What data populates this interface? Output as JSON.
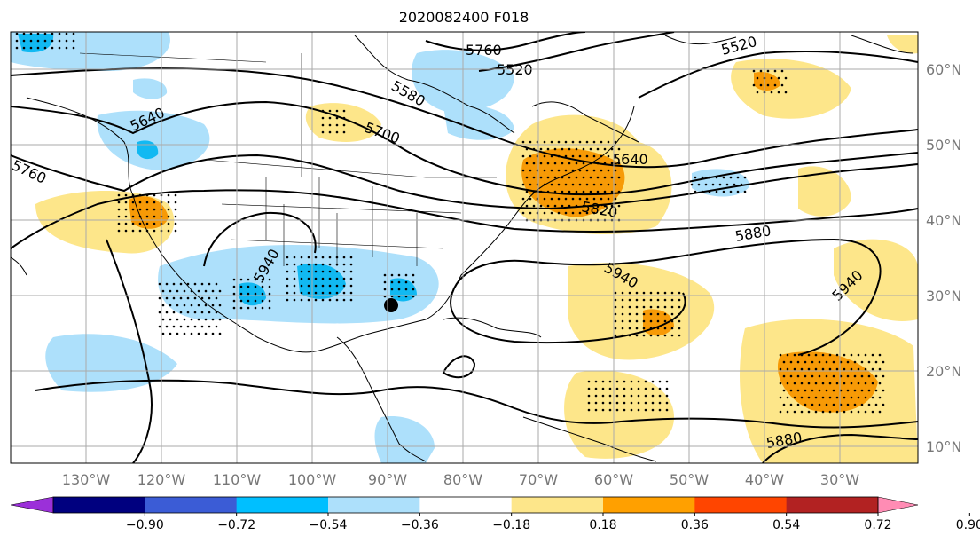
{
  "title": "2020082400 F018",
  "colors": {
    "ocean": "#ffffff",
    "light_yellow": "#fde68a",
    "orange": "#f79a06",
    "light_blue": "#ade0fb",
    "blue": "#11b9f2",
    "grid": "#aaaaaa",
    "contour": "#000000"
  },
  "longitude_labels": [
    "130°W",
    "120°W",
    "110°W",
    "100°W",
    "90°W",
    "80°W",
    "70°W",
    "60°W",
    "50°W",
    "40°W",
    "30°W"
  ],
  "latitude_labels": [
    "60°N",
    "50°N",
    "40°N",
    "30°N",
    "20°N",
    "10°N"
  ],
  "height_contour_labels": [
    "5760",
    "5520",
    "5520",
    "5580",
    "5640",
    "5700",
    "5760",
    "5640",
    "5640",
    "5820",
    "5880",
    "5940",
    "5940",
    "5940",
    "5880"
  ],
  "colorbar": {
    "ticks": [
      "−0.90",
      "−0.72",
      "−0.54",
      "−0.36",
      "−0.18",
      "0.18",
      "0.36",
      "0.54",
      "0.72",
      "0.90"
    ],
    "colors": [
      "#9b30d9",
      "#00007f",
      "#3b5cd6",
      "#00bfff",
      "#ade0fb",
      "#ffffff",
      "#fde68a",
      "#ffa000",
      "#ff4500",
      "#b22222",
      "#ff8cb4"
    ]
  },
  "marker": {
    "label": "",
    "color": "#000000"
  }
}
